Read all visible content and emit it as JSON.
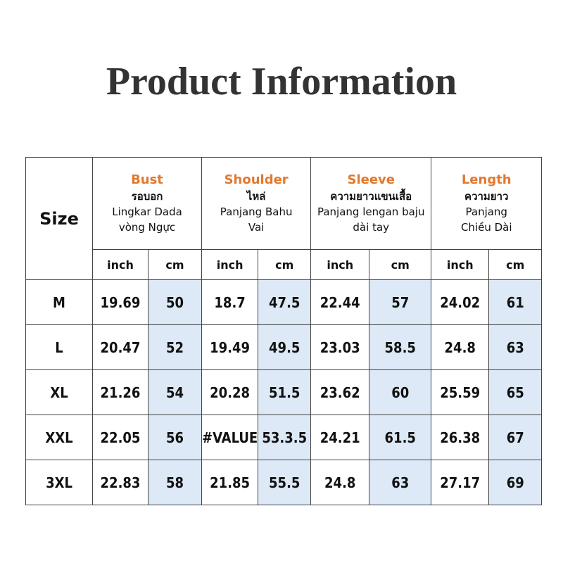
{
  "title": "Product Information",
  "size_label": "Size",
  "columns": [
    {
      "en": "Bust",
      "th": "รอบอก",
      "l1": "Lingkar Dada",
      "l2": "vòng Ngực"
    },
    {
      "en": "Shoulder",
      "th": "ไหล่",
      "l1": "Panjang Bahu",
      "l2": "Vai"
    },
    {
      "en": "Sleeve",
      "th": "ความยาวแขนเสื้อ",
      "l1": "Panjang lengan baju",
      "l2": "dài tay"
    },
    {
      "en": "Length",
      "th": "ความยาว",
      "l1": "Panjang",
      "l2": "Chiều Dài"
    }
  ],
  "units": [
    "inch",
    "cm",
    "inch",
    "cm",
    "inch",
    "cm",
    "inch",
    "cm"
  ],
  "rows": [
    {
      "size": "M",
      "v": [
        "19.69",
        "50",
        "18.7",
        "47.5",
        "22.44",
        "57",
        "24.02",
        "61"
      ]
    },
    {
      "size": "L",
      "v": [
        "20.47",
        "52",
        "19.49",
        "49.5",
        "23.03",
        "58.5",
        "24.8",
        "63"
      ]
    },
    {
      "size": "XL",
      "v": [
        "21.26",
        "54",
        "20.28",
        "51.5",
        "23.62",
        "60",
        "25.59",
        "65"
      ]
    },
    {
      "size": "XXL",
      "v": [
        "22.05",
        "56",
        "#VALUE",
        "53.3.5",
        "24.21",
        "61.5",
        "26.38",
        "67"
      ]
    },
    {
      "size": "3XL",
      "v": [
        "22.83",
        "58",
        "21.85",
        "55.5",
        "24.8",
        "63",
        "27.17",
        "69"
      ]
    }
  ],
  "colors": {
    "accent": "#e2792f",
    "cm_fill": "#dde9f6",
    "title": "#333333"
  }
}
